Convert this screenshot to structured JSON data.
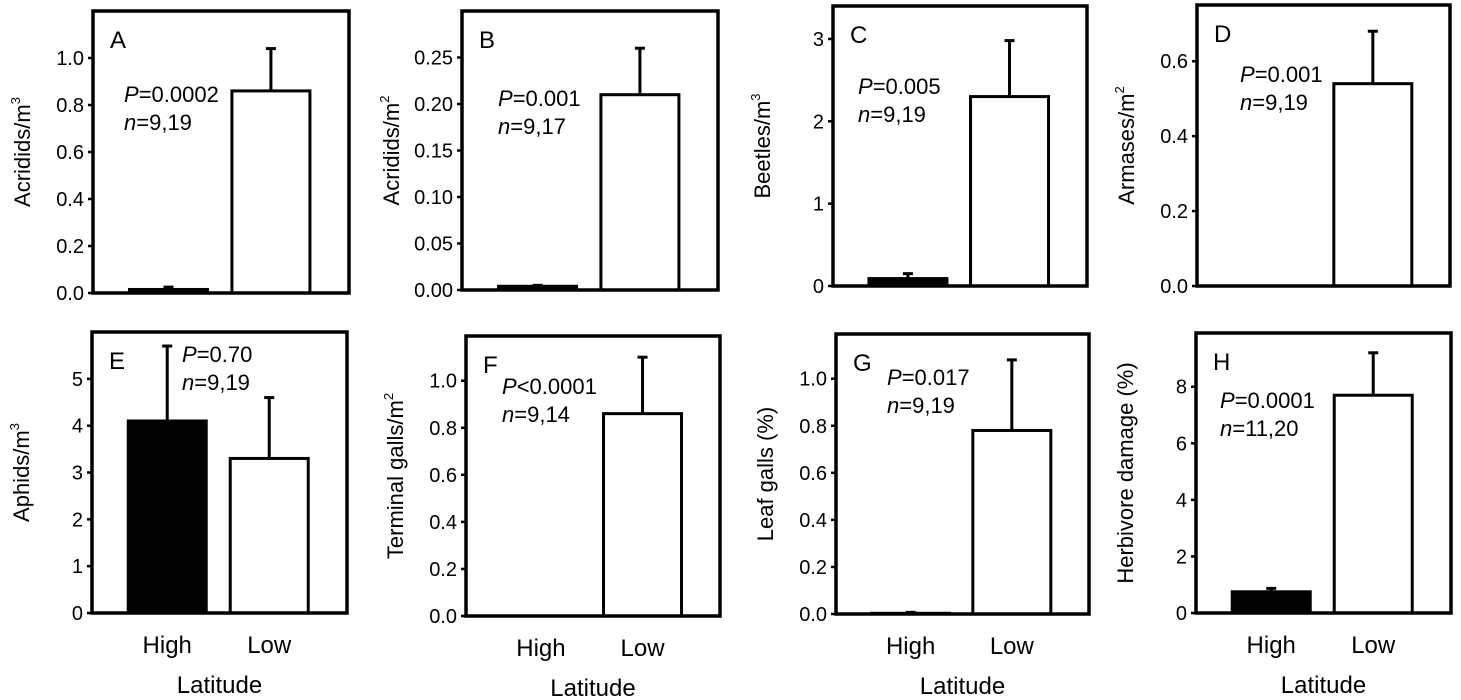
{
  "chart_data": [
    {
      "type": "bar",
      "panel": "A",
      "ylabel": "Acridids/m",
      "ylabel_sup": "3",
      "xlabel": "",
      "categories": [
        "High",
        "Low"
      ],
      "show_category_labels": false,
      "values": [
        0.015,
        0.86
      ],
      "errors": [
        0.01,
        0.18
      ],
      "ylim": [
        0,
        1.2
      ],
      "yticks": [
        0.0,
        0.2,
        0.4,
        0.6,
        0.8,
        1.0
      ],
      "ytick_labels": [
        "0.0",
        "0.2",
        "0.4",
        "0.6",
        "0.8",
        "1.0"
      ],
      "stat_p_prefix": "P",
      "stat_p": "=0.0002",
      "stat_n_prefix": "n",
      "stat_n": "=9,19",
      "fills": [
        "#000000",
        "#ffffff"
      ]
    },
    {
      "type": "bar",
      "panel": "B",
      "ylabel": "Acridids/m",
      "ylabel_sup": "2",
      "xlabel": "",
      "categories": [
        "High",
        "Low"
      ],
      "show_category_labels": false,
      "values": [
        0.004,
        0.21
      ],
      "errors": [
        0.001,
        0.05
      ],
      "ylim": [
        0,
        0.3
      ],
      "yticks": [
        0.0,
        0.05,
        0.1,
        0.15,
        0.2,
        0.25
      ],
      "ytick_labels": [
        "0.00",
        "0.05",
        "0.10",
        "0.15",
        "0.20",
        "0.25"
      ],
      "stat_p_prefix": "P",
      "stat_p": "=0.001",
      "stat_n_prefix": "n",
      "stat_n": "=9,17",
      "fills": [
        "#000000",
        "#ffffff"
      ]
    },
    {
      "type": "bar",
      "panel": "C",
      "ylabel": "Beetles/m",
      "ylabel_sup": "3",
      "xlabel": "",
      "categories": [
        "High",
        "Low"
      ],
      "show_category_labels": false,
      "values": [
        0.09,
        2.3
      ],
      "errors": [
        0.06,
        0.68
      ],
      "ylim": [
        0,
        3.4
      ],
      "yticks": [
        0,
        1,
        2,
        3
      ],
      "ytick_labels": [
        "0",
        "1",
        "2",
        "3"
      ],
      "stat_p_prefix": "P",
      "stat_p": "=0.005",
      "stat_n_prefix": "n",
      "stat_n": "=9,19",
      "fills": [
        "#000000",
        "#ffffff"
      ]
    },
    {
      "type": "bar",
      "panel": "D",
      "ylabel": "Armases/m",
      "ylabel_sup": "2",
      "xlabel": "",
      "categories": [
        "High",
        "Low"
      ],
      "show_category_labels": false,
      "values": [
        0,
        0.54
      ],
      "errors": [
        0,
        0.14
      ],
      "ylim": [
        0,
        0.75
      ],
      "yticks": [
        0.0,
        0.2,
        0.4,
        0.6
      ],
      "ytick_labels": [
        "0.0",
        "0.2",
        "0.4",
        "0.6"
      ],
      "stat_p_prefix": "P",
      "stat_p": "=0.001",
      "stat_n_prefix": "n",
      "stat_n": "=9,19",
      "fills": [
        "#000000",
        "#ffffff"
      ]
    },
    {
      "type": "bar",
      "panel": "E",
      "ylabel": "Aphids/m",
      "ylabel_sup": "3",
      "xlabel": "Latitude",
      "categories": [
        "High",
        "Low"
      ],
      "show_category_labels": true,
      "values": [
        4.1,
        3.3
      ],
      "errors": [
        1.6,
        1.3
      ],
      "ylim": [
        0,
        6
      ],
      "yticks": [
        0,
        1,
        2,
        3,
        4,
        5
      ],
      "ytick_labels": [
        "0",
        "1",
        "2",
        "3",
        "4",
        "5"
      ],
      "stat_p_prefix": "P",
      "stat_p": "=0.70",
      "stat_n_prefix": "n",
      "stat_n": "=9,19",
      "fills": [
        "#000000",
        "#ffffff"
      ]
    },
    {
      "type": "bar",
      "panel": "F",
      "ylabel": "Terminal galls/m",
      "ylabel_sup": "2",
      "xlabel": "Latitude",
      "categories": [
        "High",
        "Low"
      ],
      "show_category_labels": true,
      "values": [
        0,
        0.86
      ],
      "errors": [
        0,
        0.24
      ],
      "ylim": [
        0,
        1.19
      ],
      "yticks": [
        0.0,
        0.2,
        0.4,
        0.6,
        0.8,
        1.0
      ],
      "ytick_labels": [
        "0.0",
        "0.2",
        "0.4",
        "0.6",
        "0.8",
        "1.0"
      ],
      "stat_p_prefix": "P",
      "stat_p": "<0.0001",
      "stat_n_prefix": "n",
      "stat_n": "=9,14",
      "fills": [
        "#000000",
        "#ffffff"
      ]
    },
    {
      "type": "bar",
      "panel": "G",
      "ylabel": "Leaf galls (%)",
      "ylabel_sup": "",
      "xlabel": "Latitude",
      "categories": [
        "High",
        "Low"
      ],
      "show_category_labels": true,
      "values": [
        0.003,
        0.78
      ],
      "errors": [
        0.004,
        0.3
      ],
      "ylim": [
        0,
        1.19
      ],
      "yticks": [
        0.0,
        0.2,
        0.4,
        0.6,
        0.8,
        1.0
      ],
      "ytick_labels": [
        "0.0",
        "0.2",
        "0.4",
        "0.6",
        "0.8",
        "1.0"
      ],
      "stat_p_prefix": "P",
      "stat_p": "=0.017",
      "stat_n_prefix": "n",
      "stat_n": "=9,19",
      "fills": [
        "#000000",
        "#ffffff"
      ]
    },
    {
      "type": "bar",
      "panel": "H",
      "ylabel": "Herbivore damage (%)",
      "ylabel_sup": "",
      "xlabel": "Latitude",
      "categories": [
        "High",
        "Low"
      ],
      "show_category_labels": true,
      "values": [
        0.75,
        7.7
      ],
      "errors": [
        0.12,
        1.5
      ],
      "ylim": [
        0,
        9.9
      ],
      "yticks": [
        0,
        2,
        4,
        6,
        8
      ],
      "ytick_labels": [
        "0",
        "2",
        "4",
        "6",
        "8"
      ],
      "stat_p_prefix": "P",
      "stat_p": "=0.0001",
      "stat_n_prefix": "n",
      "stat_n": "=11,20",
      "fills": [
        "#000000",
        "#ffffff"
      ]
    }
  ]
}
